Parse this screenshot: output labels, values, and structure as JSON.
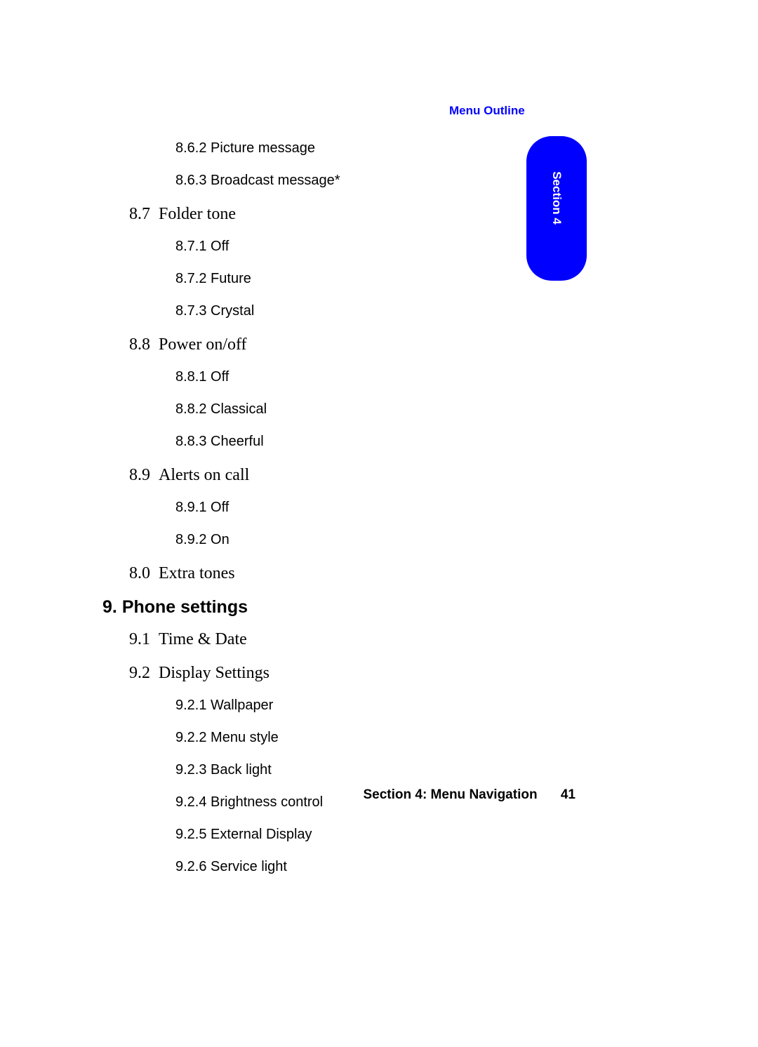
{
  "header": {
    "label": "Menu Outline"
  },
  "tab": {
    "label": "Section 4"
  },
  "outline": [
    {
      "level": 3,
      "num": "8.6.2",
      "text": "Picture message"
    },
    {
      "level": 3,
      "num": "8.6.3",
      "text": "Broadcast message*"
    },
    {
      "level": 2,
      "num": "8.7",
      "text": "Folder tone"
    },
    {
      "level": 3,
      "num": "8.7.1",
      "text": "Off"
    },
    {
      "level": 3,
      "num": "8.7.2",
      "text": "Future"
    },
    {
      "level": 3,
      "num": "8.7.3",
      "text": "Crystal"
    },
    {
      "level": 2,
      "num": "8.8",
      "text": "Power on/off"
    },
    {
      "level": 3,
      "num": "8.8.1",
      "text": "Off"
    },
    {
      "level": 3,
      "num": "8.8.2",
      "text": "Classical"
    },
    {
      "level": 3,
      "num": "8.8.3",
      "text": "Cheerful"
    },
    {
      "level": 2,
      "num": "8.9",
      "text": "Alerts on call"
    },
    {
      "level": 3,
      "num": "8.9.1",
      "text": "Off"
    },
    {
      "level": 3,
      "num": "8.9.2",
      "text": "On"
    },
    {
      "level": 2,
      "num": "8.0",
      "text": "Extra tones"
    },
    {
      "level": 1,
      "num": "9.",
      "text": "Phone settings"
    },
    {
      "level": 2,
      "num": "9.1",
      "text": "Time & Date"
    },
    {
      "level": 2,
      "num": "9.2",
      "text": "Display Settings"
    },
    {
      "level": 3,
      "num": "9.2.1",
      "text": "Wallpaper"
    },
    {
      "level": 3,
      "num": "9.2.2",
      "text": "Menu style"
    },
    {
      "level": 3,
      "num": "9.2.3",
      "text": "Back light"
    },
    {
      "level": 3,
      "num": "9.2.4",
      "text": "Brightness control"
    },
    {
      "level": 3,
      "num": "9.2.5",
      "text": "External Display"
    },
    {
      "level": 3,
      "num": "9.2.6",
      "text": "Service light"
    }
  ],
  "footer": {
    "section": "Section 4: Menu Navigation",
    "page": "41"
  },
  "colors": {
    "accent": "#0000ff",
    "text": "#000000",
    "background": "#ffffff",
    "tab_text": "#ffffff"
  },
  "typography": {
    "header_font": "Arial",
    "header_size_pt": 13,
    "l1_font": "Arial",
    "l1_size_pt": 19,
    "l2_font": "Palatino",
    "l2_size_pt": 18,
    "l3_font": "Trebuchet MS",
    "l3_size_pt": 15,
    "footer_font": "Arial",
    "footer_size_pt": 14
  }
}
